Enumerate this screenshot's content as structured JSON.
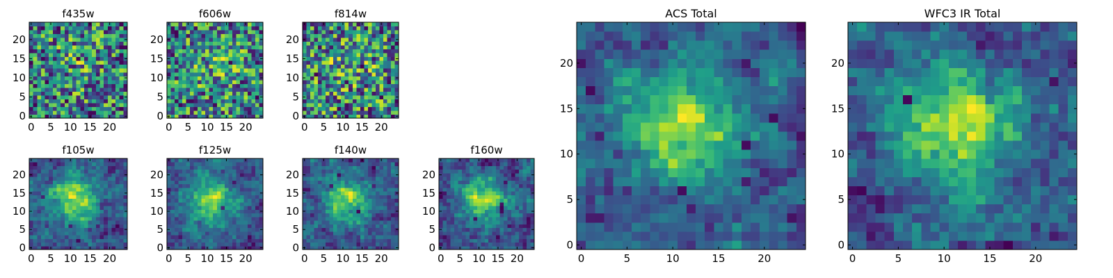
{
  "chart_data": [
    {
      "type": "heatmap",
      "title": "f435w",
      "grid_size": 25,
      "xticks": [
        "0",
        "5",
        "10",
        "15",
        "20"
      ],
      "yticks": [
        "0",
        "5",
        "10",
        "15",
        "20"
      ],
      "xlim": [
        0,
        25
      ],
      "ylim": [
        0,
        25
      ],
      "colormap": "viridis",
      "pattern": "noise"
    },
    {
      "type": "heatmap",
      "title": "f606w",
      "grid_size": 25,
      "xticks": [
        "0",
        "5",
        "10",
        "15",
        "20"
      ],
      "yticks": [
        "0",
        "5",
        "10",
        "15",
        "20"
      ],
      "xlim": [
        0,
        25
      ],
      "ylim": [
        0,
        25
      ],
      "colormap": "viridis",
      "pattern": "noise"
    },
    {
      "type": "heatmap",
      "title": "f814w",
      "grid_size": 25,
      "xticks": [
        "0",
        "5",
        "10",
        "15",
        "20"
      ],
      "yticks": [
        "0",
        "5",
        "10",
        "15",
        "20"
      ],
      "xlim": [
        0,
        25
      ],
      "ylim": [
        0,
        25
      ],
      "colormap": "viridis",
      "pattern": "noise"
    },
    {
      "type": "heatmap",
      "title": "f105w",
      "grid_size": 25,
      "xticks": [
        "0",
        "5",
        "10",
        "15",
        "20"
      ],
      "yticks": [
        "0",
        "5",
        "10",
        "15",
        "20"
      ],
      "xlim": [
        0,
        25
      ],
      "ylim": [
        0,
        25
      ],
      "colormap": "viridis",
      "pattern": "smooth"
    },
    {
      "type": "heatmap",
      "title": "f125w",
      "grid_size": 25,
      "xticks": [
        "0",
        "5",
        "10",
        "15",
        "20"
      ],
      "yticks": [
        "0",
        "5",
        "10",
        "15",
        "20"
      ],
      "xlim": [
        0,
        25
      ],
      "ylim": [
        0,
        25
      ],
      "colormap": "viridis",
      "pattern": "smooth"
    },
    {
      "type": "heatmap",
      "title": "f140w",
      "grid_size": 25,
      "xticks": [
        "0",
        "5",
        "10",
        "15",
        "20"
      ],
      "yticks": [
        "0",
        "5",
        "10",
        "15",
        "20"
      ],
      "xlim": [
        0,
        25
      ],
      "ylim": [
        0,
        25
      ],
      "colormap": "viridis",
      "pattern": "smooth"
    },
    {
      "type": "heatmap",
      "title": "f160w",
      "grid_size": 25,
      "xticks": [
        "0",
        "5",
        "10",
        "15",
        "20"
      ],
      "yticks": [
        "0",
        "5",
        "10",
        "15",
        "20"
      ],
      "xlim": [
        0,
        25
      ],
      "ylim": [
        0,
        25
      ],
      "colormap": "viridis",
      "pattern": "smooth"
    },
    {
      "type": "heatmap",
      "title": "ACS Total",
      "grid_size": 25,
      "xticks": [
        "0",
        "5",
        "10",
        "15",
        "20"
      ],
      "yticks": [
        "0",
        "5",
        "10",
        "15",
        "20"
      ],
      "xlim": [
        0,
        25
      ],
      "ylim": [
        0,
        25
      ],
      "colormap": "viridis",
      "pattern": "central-blob"
    },
    {
      "type": "heatmap",
      "title": "WFC3 IR Total",
      "grid_size": 25,
      "xticks": [
        "0",
        "5",
        "10",
        "15",
        "20"
      ],
      "yticks": [
        "0",
        "5",
        "10",
        "15",
        "20"
      ],
      "xlim": [
        0,
        25
      ],
      "ylim": [
        0,
        25
      ],
      "colormap": "viridis",
      "pattern": "central-blob"
    }
  ]
}
